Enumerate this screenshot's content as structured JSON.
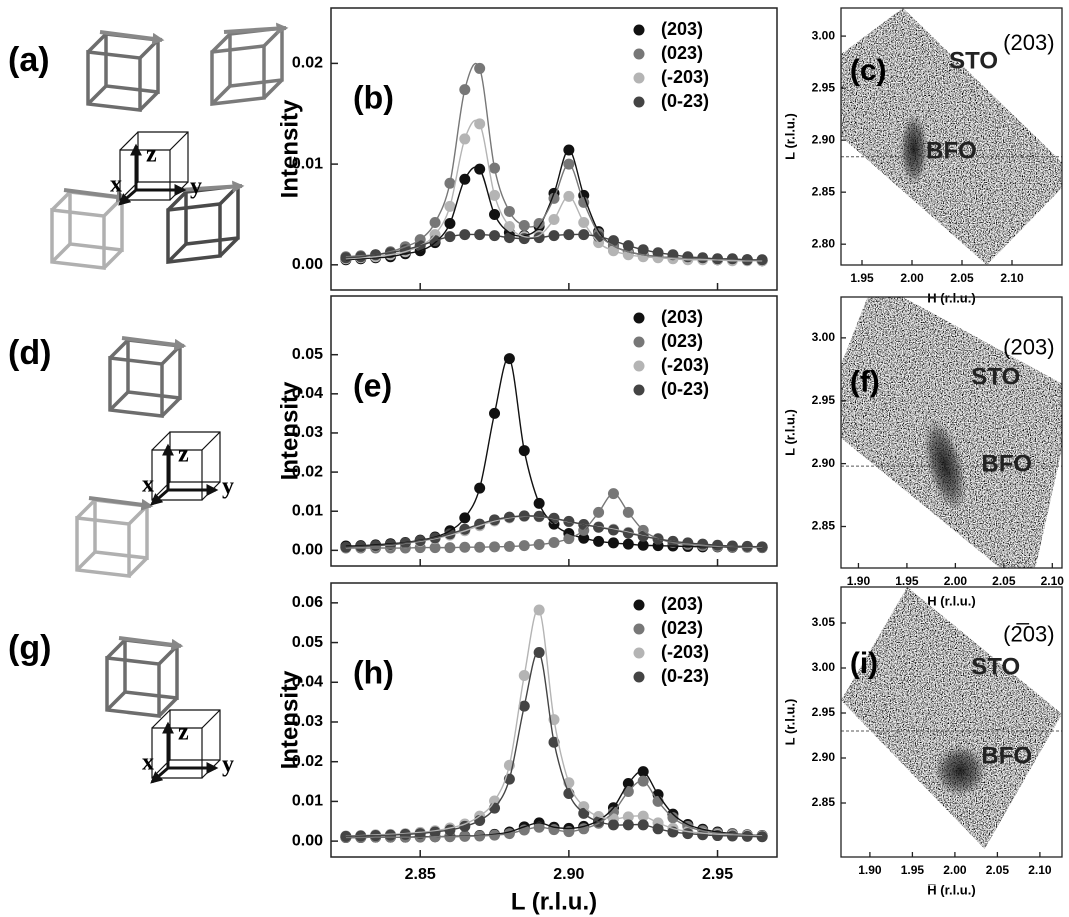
{
  "diagrams": [
    {
      "label": "(a)",
      "axes": [
        "x",
        "y",
        "z"
      ]
    },
    {
      "label": "(d)",
      "axes": [
        "x",
        "y",
        "z"
      ]
    },
    {
      "label": "(g)",
      "axes": [
        "x",
        "y",
        "z"
      ]
    }
  ],
  "chart_data": [
    {
      "type": "line",
      "label": "(b)",
      "ylabel": "Intensity",
      "legend": "upper right",
      "x": [
        2.825,
        2.83,
        2.835,
        2.84,
        2.845,
        2.85,
        2.855,
        2.86,
        2.865,
        2.87,
        2.875,
        2.88,
        2.885,
        2.89,
        2.895,
        2.9,
        2.905,
        2.91,
        2.915,
        2.92,
        2.925,
        2.93,
        2.935,
        2.94,
        2.945,
        2.95,
        2.955,
        2.96,
        2.965
      ],
      "xlim": [
        2.82,
        2.97
      ],
      "ylim": [
        -0.0025,
        0.0255
      ],
      "yticks": [
        {
          "value": 0,
          "label": "0.00"
        },
        0.01,
        0.02
      ],
      "series": [
        {
          "name": "(203)",
          "color": "#111111",
          "values": [
            0.0005,
            0.0006,
            0.0007,
            0.0008,
            0.0011,
            0.0014,
            0.0022,
            0.0041,
            0.0085,
            0.0095,
            0.005,
            0.0032,
            0.0029,
            0.0038,
            0.0071,
            0.0114,
            0.0069,
            0.0033,
            0.0019,
            0.0013,
            0.001,
            0.0008,
            0.0007,
            0.0006,
            0.0006,
            0.0005,
            0.0005,
            0.0005,
            0.0004
          ]
        },
        {
          "name": "(023)",
          "color": "#777777",
          "values": [
            0.0008,
            0.0009,
            0.001,
            0.0013,
            0.0018,
            0.0025,
            0.0042,
            0.0081,
            0.0174,
            0.0195,
            0.0096,
            0.0053,
            0.0039,
            0.0041,
            0.0066,
            0.01,
            0.0062,
            0.0031,
            0.0019,
            0.0013,
            0.001,
            0.0008,
            0.0007,
            0.0006,
            0.0006,
            0.0005,
            0.0005,
            0.0005,
            0.0004
          ]
        },
        {
          "name": "(-203)",
          "color": "#b4b4b4",
          "values": [
            0.0006,
            0.0007,
            0.0008,
            0.001,
            0.0013,
            0.0019,
            0.003,
            0.0058,
            0.0125,
            0.014,
            0.0069,
            0.0038,
            0.0028,
            0.0029,
            0.0045,
            0.0068,
            0.0042,
            0.0022,
            0.0014,
            0.001,
            0.0008,
            0.0007,
            0.0006,
            0.0005,
            0.0005,
            0.0005,
            0.0004,
            0.0004,
            0.0004
          ]
        },
        {
          "name": "(0-23)",
          "color": "#444444",
          "values": [
            0.0007,
            0.0008,
            0.001,
            0.0012,
            0.0015,
            0.0019,
            0.0024,
            0.0028,
            0.003,
            0.003,
            0.0029,
            0.0027,
            0.0026,
            0.0027,
            0.0029,
            0.003,
            0.003,
            0.0028,
            0.0024,
            0.0019,
            0.0015,
            0.0012,
            0.001,
            0.0008,
            0.0007,
            0.0006,
            0.0006,
            0.0005,
            0.0005
          ]
        }
      ]
    },
    {
      "type": "map",
      "label": "(c)",
      "reflection": "(203)",
      "annotations": [
        "STO",
        "BFO"
      ],
      "xlabel": "H (r.l.u.)",
      "ylabel": "L (r.l.u.)",
      "xlim": [
        1.929,
        2.15
      ],
      "ylim": [
        2.78,
        3.027
      ],
      "xticks": [
        1.95,
        {
          "value": 2,
          "label": "2.00"
        },
        2.05,
        {
          "value": 2.1,
          "label": "2.10"
        }
      ],
      "yticks": [
        {
          "value": 2.8,
          "label": "2.80"
        },
        2.85,
        {
          "value": 2.9,
          "label": "2.90"
        },
        2.95,
        {
          "value": 3,
          "label": "3.00"
        }
      ],
      "hline": 2.884
    },
    {
      "type": "line",
      "label": "(e)",
      "ylabel": "Intensity",
      "legend": "upper right",
      "x": [
        2.825,
        2.83,
        2.835,
        2.84,
        2.845,
        2.85,
        2.855,
        2.86,
        2.865,
        2.87,
        2.875,
        2.88,
        2.885,
        2.89,
        2.895,
        2.9,
        2.905,
        2.91,
        2.915,
        2.92,
        2.925,
        2.93,
        2.935,
        2.94,
        2.945,
        2.95,
        2.955,
        2.96,
        2.965
      ],
      "xlim": [
        2.82,
        2.97
      ],
      "ylim": [
        -0.004,
        0.065
      ],
      "yticks": [
        {
          "value": 0,
          "label": "0.00"
        },
        0.01,
        0.02,
        0.03,
        0.04,
        0.05
      ],
      "series": [
        {
          "name": "(203)",
          "color": "#111111",
          "values": [
            0.0011,
            0.0012,
            0.0014,
            0.0017,
            0.002,
            0.0026,
            0.0034,
            0.005,
            0.0083,
            0.0159,
            0.035,
            0.049,
            0.0255,
            0.012,
            0.0067,
            0.0043,
            0.0031,
            0.0023,
            0.0019,
            0.0016,
            0.0013,
            0.0012,
            0.0011,
            0.001,
            0.0009,
            0.0009,
            0.0008,
            0.0008,
            0.0007
          ]
        },
        {
          "name": "(023)",
          "color": "#777777",
          "values": [
            0.0006,
            0.0006,
            0.0006,
            0.0006,
            0.0006,
            0.0007,
            0.0007,
            0.0007,
            0.0008,
            0.0008,
            0.0009,
            0.001,
            0.0012,
            0.0015,
            0.002,
            0.003,
            0.0051,
            0.0097,
            0.0145,
            0.0097,
            0.0051,
            0.003,
            0.002,
            0.0015,
            0.0012,
            0.001,
            0.0009,
            0.0008,
            0.0008
          ]
        },
        {
          "name": "(-203)",
          "color": "#b4b4b4",
          "values": [
            0.0007,
            0.0009,
            0.0011,
            0.0014,
            0.0018,
            0.0023,
            0.003,
            0.0039,
            0.005,
            0.0063,
            0.0075,
            0.0083,
            0.0087,
            0.0086,
            0.0081,
            0.0073,
            0.0066,
            0.006,
            0.0054,
            0.0046,
            0.0037,
            0.0029,
            0.0023,
            0.0018,
            0.0015,
            0.0012,
            0.0011,
            0.0009,
            0.0008
          ]
        },
        {
          "name": "(0-23)",
          "color": "#444444",
          "values": [
            0.0008,
            0.001,
            0.0012,
            0.0015,
            0.0019,
            0.0025,
            0.0032,
            0.0042,
            0.0054,
            0.0067,
            0.0078,
            0.0085,
            0.0088,
            0.0087,
            0.0082,
            0.0074,
            0.0066,
            0.0059,
            0.0052,
            0.0044,
            0.0036,
            0.0029,
            0.0023,
            0.0019,
            0.0016,
            0.0013,
            0.0011,
            0.001,
            0.0009
          ]
        }
      ]
    },
    {
      "type": "map",
      "label": "(f)",
      "reflection": "(203)",
      "annotations": [
        "STO",
        "BFO"
      ],
      "xlabel": "H (r.l.u.)",
      "ylabel": "L (r.l.u.)",
      "xlim": [
        1.882,
        2.11
      ],
      "ylim": [
        2.817,
        3.0325
      ],
      "xticks": [
        {
          "value": 1.9,
          "label": "1.90"
        },
        1.95,
        {
          "value": 2,
          "label": "2.00"
        },
        2.05,
        {
          "value": 2.1,
          "label": "2.10"
        }
      ],
      "yticks": [
        2.85,
        {
          "value": 2.9,
          "label": "2.90"
        },
        2.95,
        {
          "value": 3,
          "label": "3.00"
        }
      ],
      "hline": 2.898
    },
    {
      "type": "line",
      "label": "(h)",
      "ylabel": "Intensity",
      "xlabel": "L (r.l.u.)",
      "legend": "upper right",
      "x": [
        2.825,
        2.83,
        2.835,
        2.84,
        2.845,
        2.85,
        2.855,
        2.86,
        2.865,
        2.87,
        2.875,
        2.88,
        2.885,
        2.89,
        2.895,
        2.9,
        2.905,
        2.91,
        2.915,
        2.92,
        2.925,
        2.93,
        2.935,
        2.94,
        2.945,
        2.95,
        2.955,
        2.96,
        2.965
      ],
      "xlim": [
        2.82,
        2.97
      ],
      "ylim": [
        -0.004,
        0.065
      ],
      "xticks": [
        2.85,
        {
          "value": 2.9,
          "label": "2.90"
        },
        2.95
      ],
      "yticks": [
        {
          "value": 0,
          "label": "0.00"
        },
        0.01,
        0.02,
        0.03,
        0.04,
        0.05,
        0.06
      ],
      "series": [
        {
          "name": "(203)",
          "color": "#111111",
          "values": [
            0.0009,
            0.0009,
            0.001,
            0.001,
            0.001,
            0.0011,
            0.0011,
            0.0012,
            0.0013,
            0.0014,
            0.0017,
            0.0023,
            0.0036,
            0.0046,
            0.0035,
            0.0032,
            0.0037,
            0.0052,
            0.0084,
            0.0145,
            0.0175,
            0.0117,
            0.0068,
            0.0042,
            0.003,
            0.0023,
            0.0019,
            0.0016,
            0.0014
          ]
        },
        {
          "name": "(023)",
          "color": "#777777",
          "values": [
            0.0009,
            0.0009,
            0.001,
            0.001,
            0.001,
            0.001,
            0.0011,
            0.0011,
            0.0012,
            0.0013,
            0.0015,
            0.0019,
            0.0028,
            0.0035,
            0.0029,
            0.0024,
            0.0031,
            0.0045,
            0.0073,
            0.0125,
            0.0151,
            0.01,
            0.0059,
            0.0037,
            0.0026,
            0.002,
            0.0018,
            0.0015,
            0.0013
          ]
        },
        {
          "name": "(-203)",
          "color": "#b4b4b4",
          "values": [
            0.0013,
            0.0014,
            0.0016,
            0.0017,
            0.0019,
            0.0022,
            0.0026,
            0.0033,
            0.0043,
            0.0063,
            0.0101,
            0.0191,
            0.0417,
            0.0582,
            0.0306,
            0.0147,
            0.0087,
            0.0062,
            0.0056,
            0.0061,
            0.0063,
            0.0046,
            0.0032,
            0.0024,
            0.002,
            0.0017,
            0.0015,
            0.0014,
            0.0013
          ]
        },
        {
          "name": "(0-23)",
          "color": "#444444",
          "values": [
            0.0012,
            0.0013,
            0.0014,
            0.0015,
            0.0017,
            0.0019,
            0.0023,
            0.0028,
            0.0037,
            0.0052,
            0.0083,
            0.0156,
            0.034,
            0.0475,
            0.0249,
            0.012,
            0.007,
            0.0049,
            0.0041,
            0.0041,
            0.0041,
            0.0031,
            0.0023,
            0.0019,
            0.0016,
            0.0014,
            0.0013,
            0.0012,
            0.0011
          ]
        }
      ]
    },
    {
      "type": "map",
      "label": "(i)",
      "reflection": "(2̅03)",
      "annotations": [
        "STO",
        "BFO"
      ],
      "xlabel": "H̅ (r.l.u.)",
      "ylabel": "L (r.l.u.)",
      "xlim": [
        1.866,
        2.126
      ],
      "ylim": [
        2.79,
        3.09
      ],
      "xticks": [
        {
          "value": 1.9,
          "label": "1.90"
        },
        1.95,
        {
          "value": 2,
          "label": "2.00"
        },
        2.05,
        {
          "value": 2.1,
          "label": "2.10"
        }
      ],
      "yticks": [
        2.85,
        {
          "value": 2.9,
          "label": "2.90"
        },
        2.95,
        {
          "value": 3,
          "label": "3.00"
        },
        3.05
      ],
      "hline": 2.93
    }
  ]
}
